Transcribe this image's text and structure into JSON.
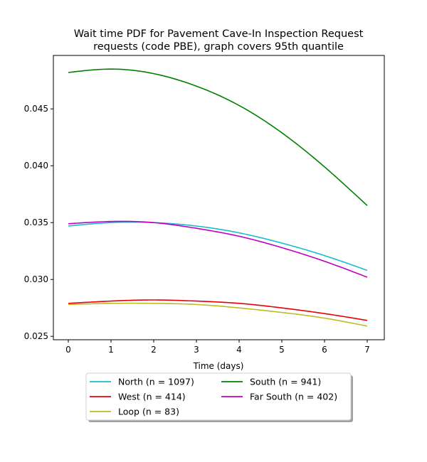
{
  "chart_data": {
    "type": "line",
    "title": "Wait time PDF for Pavement Cave-In Inspection Request",
    "subtitle": "requests (code PBE), graph covers 95th quantile",
    "xlabel": "Time (days)",
    "ylabel": "",
    "xlim": [
      -0.35,
      7.4
    ],
    "ylim": [
      0.0247,
      0.0497
    ],
    "xticks": [
      0,
      1,
      2,
      3,
      4,
      5,
      6,
      7
    ],
    "xtick_labels": [
      "0",
      "1",
      "2",
      "3",
      "4",
      "5",
      "6",
      "7"
    ],
    "yticks": [
      0.025,
      0.03,
      0.035,
      0.04,
      0.045
    ],
    "ytick_labels": [
      "0.025",
      "0.030",
      "0.035",
      "0.040",
      "0.045"
    ],
    "grid": false,
    "legend_position": "below-center",
    "x": [
      0,
      1,
      2,
      3,
      4,
      5,
      6,
      7
    ],
    "series": [
      {
        "name": "North (n = 1097)",
        "color": "#17becf",
        "values": [
          0.0347,
          0.035,
          0.035,
          0.0347,
          0.0341,
          0.0332,
          0.0321,
          0.0308
        ]
      },
      {
        "name": "West (n = 414)",
        "color": "#e8000b",
        "values": [
          0.0279,
          0.0281,
          0.0282,
          0.0281,
          0.0279,
          0.0275,
          0.027,
          0.0264
        ]
      },
      {
        "name": "Loop (n = 83)",
        "color": "#bcbd22",
        "values": [
          0.0278,
          0.0279,
          0.0279,
          0.0278,
          0.0275,
          0.0271,
          0.0266,
          0.0259
        ]
      },
      {
        "name": "South (n = 941)",
        "color": "#008000",
        "values": [
          0.0482,
          0.0485,
          0.0481,
          0.047,
          0.0453,
          0.0429,
          0.0399,
          0.0365
        ]
      },
      {
        "name": "Far South (n = 402)",
        "color": "#bf00bf",
        "values": [
          0.0349,
          0.0351,
          0.035,
          0.0345,
          0.0338,
          0.0328,
          0.0316,
          0.0302
        ]
      }
    ]
  }
}
